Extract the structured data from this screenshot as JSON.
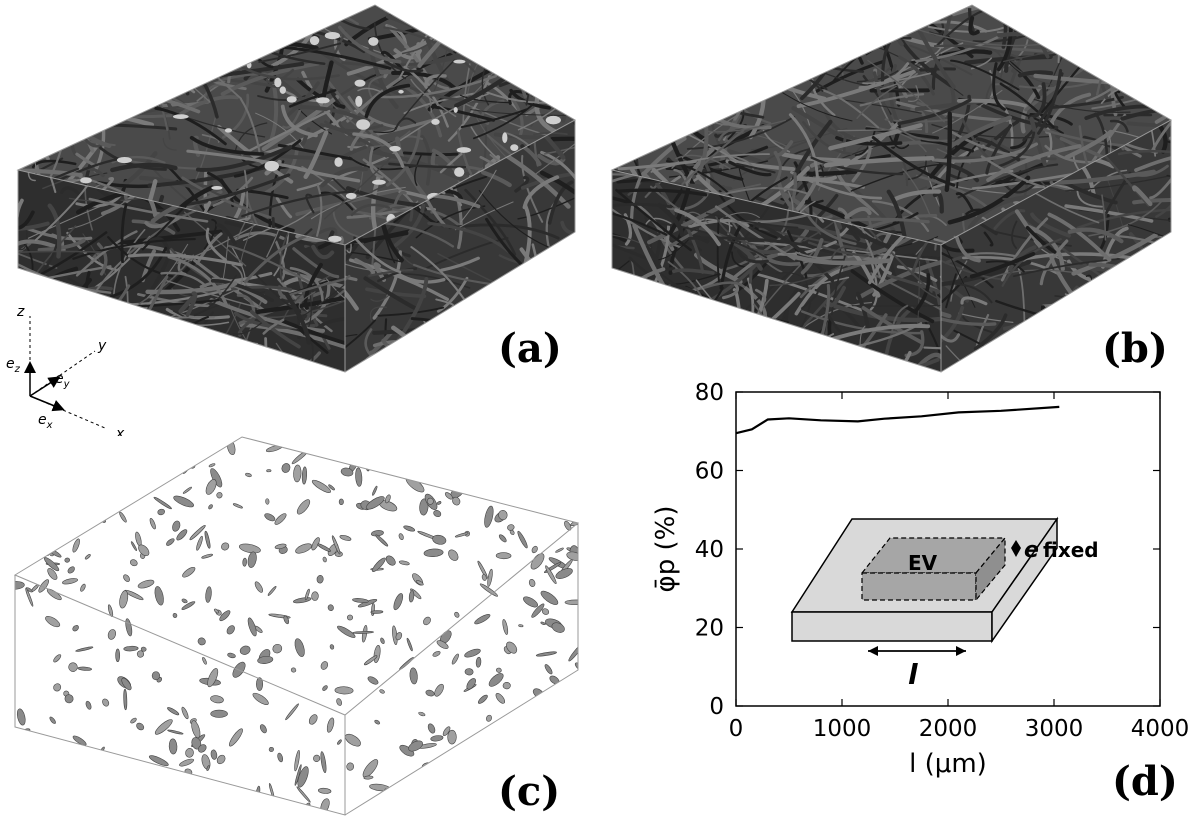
{
  "panels": {
    "a": {
      "label": "(a)"
    },
    "b": {
      "label": "(b)"
    },
    "c": {
      "label": "(c)"
    },
    "d": {
      "label": "(d)"
    }
  },
  "axes_triad": {
    "z": "z",
    "y": "y",
    "x": "x",
    "ez": "e",
    "ez_sub": "z",
    "ey": "e",
    "ey_sub": "y",
    "ex": "e",
    "ex_sub": "x"
  },
  "inset": {
    "box_label": "EV",
    "thickness_symbol": "e",
    "thickness_text": "fixed",
    "length_symbol": "l"
  },
  "chart_data": {
    "type": "line",
    "xlabel": "l (μm)",
    "ylabel": "φ̄p (%)",
    "xlim": [
      0,
      4000
    ],
    "ylim": [
      0,
      80
    ],
    "xticks": [
      0,
      1000,
      2000,
      3000,
      4000
    ],
    "yticks": [
      0,
      20,
      40,
      60,
      80
    ],
    "xtick_labels": [
      "0",
      "1000",
      "2000",
      "3000",
      "4000"
    ],
    "ytick_labels": [
      "0",
      "20",
      "40",
      "60",
      "80"
    ],
    "grid": false,
    "series": [
      {
        "values": [
          [
            0,
            69.5
          ],
          [
            150,
            70.5
          ],
          [
            300,
            73
          ],
          [
            500,
            73.3
          ],
          [
            800,
            72.8
          ],
          [
            1150,
            72.5
          ],
          [
            1400,
            73.2
          ],
          [
            1750,
            73.8
          ],
          [
            2100,
            74.8
          ],
          [
            2500,
            75.2
          ],
          [
            3050,
            76.2
          ]
        ]
      }
    ]
  },
  "colors": {
    "fiber_dark": "#3a3a3a",
    "fiber_mid": "#555555",
    "particle_light": "#c8c8c8",
    "particle_gray": "#8c8c8c",
    "inset_face": "#d9d9d9",
    "inset_box": "#a6a6a6"
  }
}
